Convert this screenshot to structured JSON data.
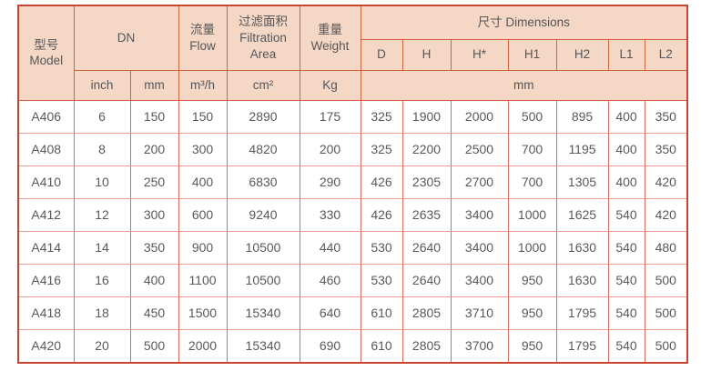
{
  "colors": {
    "header_bg": "#f4d7c4",
    "outer_border": "#c9452f",
    "header_grid": "#d2623e",
    "body_grid_vertical": "#e4695c",
    "body_grid_horizontal": "#f09a91",
    "text": "#58595b"
  },
  "table": {
    "header": {
      "model": "型号\nModel",
      "dn": "DN",
      "flow": "流量\nFlow",
      "filtration_area": "过滤面积\nFiltration\nArea",
      "weight": "重量\nWeight",
      "dimensions": "尺寸 Dimensions",
      "dim_cols": [
        "D",
        "H",
        "H*",
        "H1",
        "H2",
        "L1",
        "L2"
      ],
      "units": {
        "dn_inch": "inch",
        "dn_mm": "mm",
        "flow": "m³/h",
        "filtration_area": "cm²",
        "weight": "Kg",
        "dimensions": "mm"
      }
    },
    "column_keys": [
      "model",
      "dn-inch",
      "dn-mm",
      "flow",
      "filtration-area",
      "weight",
      "dim-d",
      "dim-h",
      "dim-h-star",
      "dim-h1",
      "dim-h2",
      "dim-l1",
      "dim-l2"
    ],
    "rows": [
      [
        "A406",
        "6",
        "150",
        "150",
        "2890",
        "175",
        "325",
        "1900",
        "2000",
        "500",
        "895",
        "400",
        "350"
      ],
      [
        "A408",
        "8",
        "200",
        "300",
        "4820",
        "200",
        "325",
        "2200",
        "2500",
        "700",
        "1195",
        "400",
        "350"
      ],
      [
        "A410",
        "10",
        "250",
        "400",
        "6830",
        "290",
        "426",
        "2305",
        "2700",
        "700",
        "1305",
        "400",
        "420"
      ],
      [
        "A412",
        "12",
        "300",
        "600",
        "9240",
        "330",
        "426",
        "2635",
        "3400",
        "1000",
        "1625",
        "540",
        "420"
      ],
      [
        "A414",
        "14",
        "350",
        "900",
        "10500",
        "440",
        "530",
        "2640",
        "3400",
        "1000",
        "1630",
        "540",
        "480"
      ],
      [
        "A416",
        "16",
        "400",
        "1100",
        "10500",
        "460",
        "530",
        "2640",
        "3400",
        "950",
        "1630",
        "540",
        "500"
      ],
      [
        "A418",
        "18",
        "450",
        "1500",
        "15340",
        "640",
        "610",
        "2805",
        "3710",
        "950",
        "1795",
        "540",
        "500"
      ],
      [
        "A420",
        "20",
        "500",
        "2000",
        "15340",
        "690",
        "610",
        "2805",
        "3700",
        "950",
        "1795",
        "540",
        "500"
      ]
    ]
  }
}
